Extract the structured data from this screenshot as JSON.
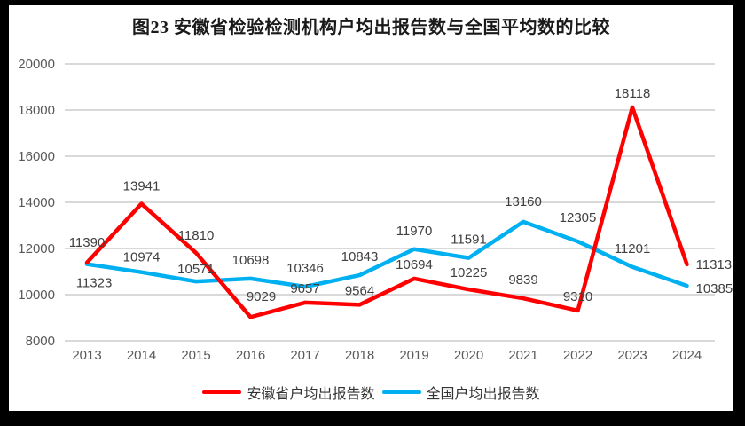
{
  "frame": {
    "border_color": "#000000",
    "background": "#ffffff"
  },
  "chart_data": {
    "type": "line",
    "title": "图23 安徽省检验检测机构户均出报告数与全国平均数的比较",
    "categories": [
      "2013",
      "2014",
      "2015",
      "2016",
      "2017",
      "2018",
      "2019",
      "2020",
      "2021",
      "2022",
      "2023",
      "2024"
    ],
    "series": [
      {
        "name": "安徽省户均出报告数",
        "color": "#FF0000",
        "values": [
          11390,
          13941,
          11810,
          9029,
          9657,
          9564,
          10694,
          10225,
          9839,
          9310,
          18118,
          11313
        ]
      },
      {
        "name": "全国户均出报告数",
        "color": "#00B0F0",
        "values": [
          11323,
          10974,
          10571,
          10698,
          10346,
          10843,
          11970,
          11591,
          13160,
          12305,
          11201,
          10385
        ]
      }
    ],
    "ylim": [
      8000,
      20000
    ],
    "y_step": 2000,
    "y_ticks": [
      "20000",
      "18000",
      "16000",
      "14000",
      "12000",
      "10000",
      "8000"
    ],
    "grid": true,
    "data_labels": true,
    "legend_position": "bottom",
    "colors": {
      "grid": "#D9D9D9",
      "axis_text": "#595959",
      "label_text": "#404040",
      "title_text": "#1A1A1A"
    }
  }
}
